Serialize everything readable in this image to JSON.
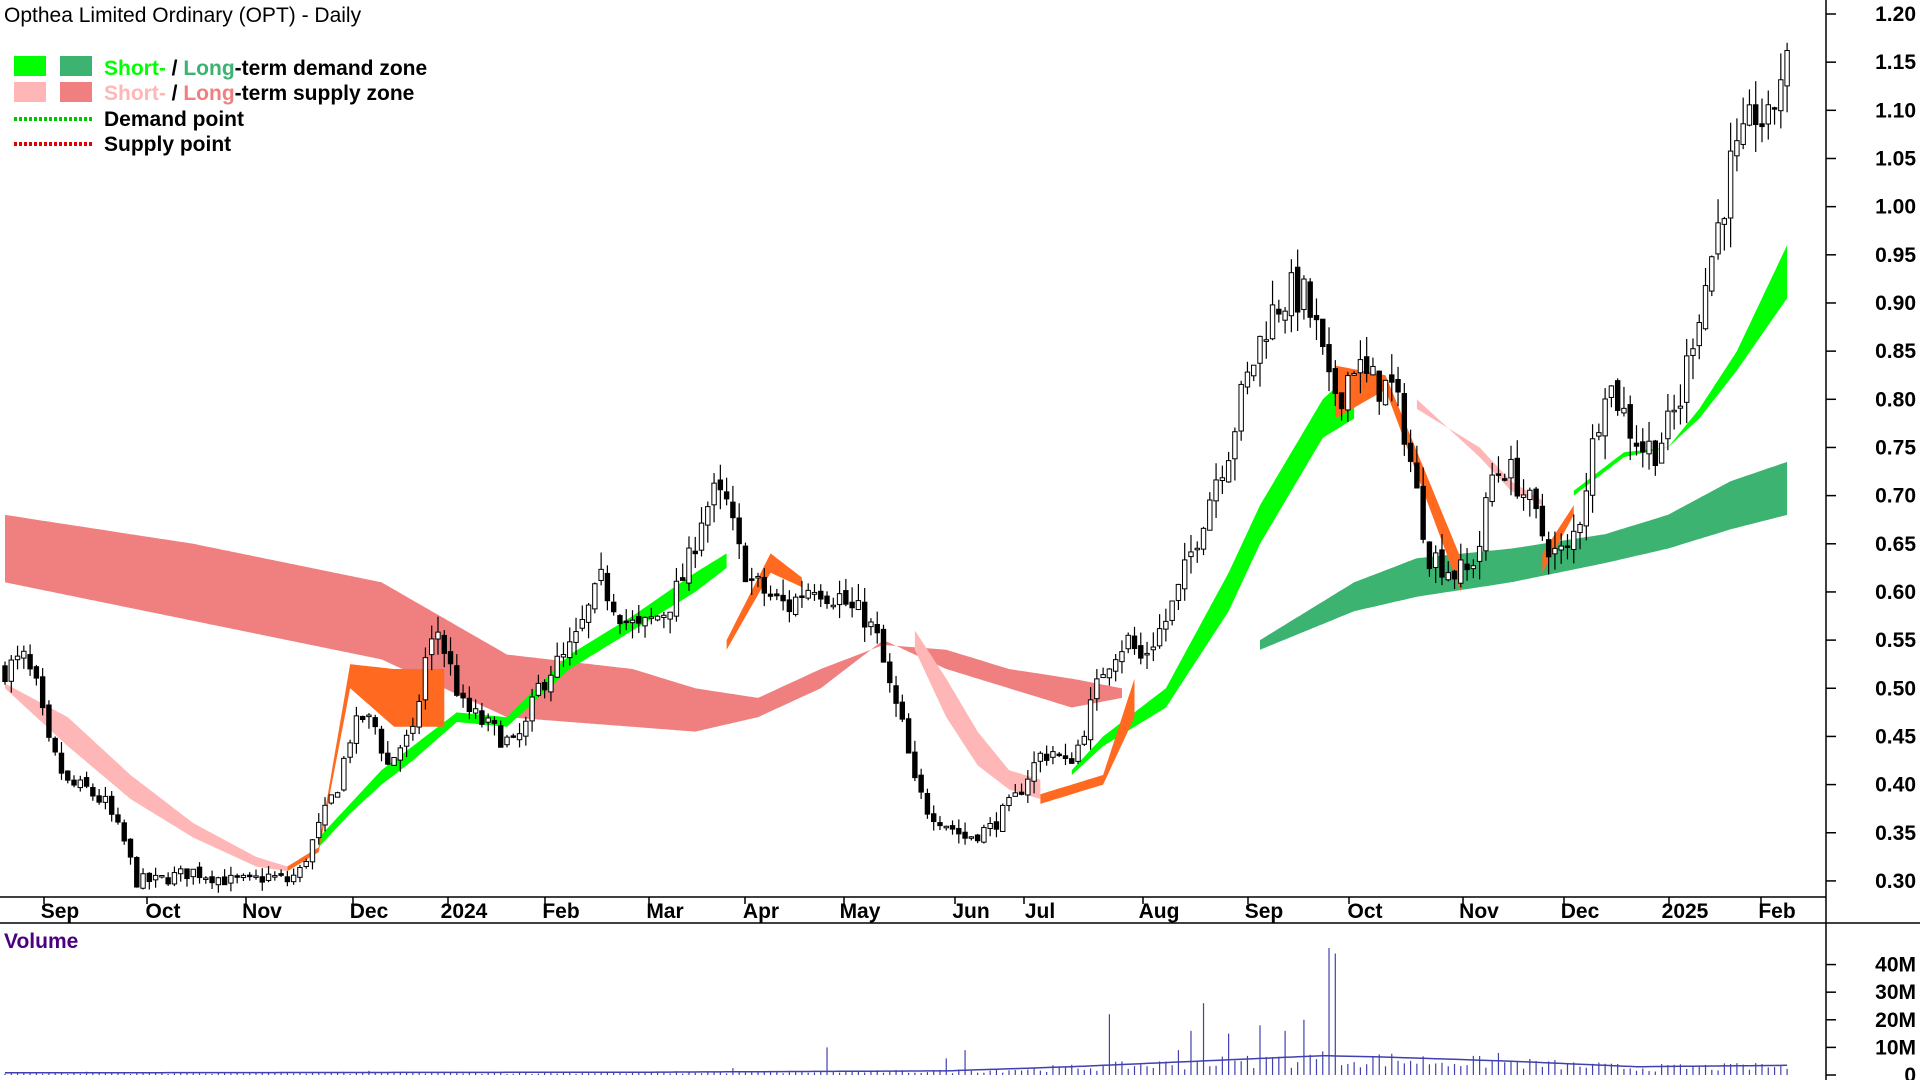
{
  "chart_data": {
    "type": "candlestick",
    "title": "Opthea Limited Ordinary (OPT) - Daily",
    "legend": {
      "placement": "top-left",
      "short_label": "Short-",
      "slash": " / ",
      "long_label": "Long",
      "demand_zone_suffix": "-term demand zone",
      "supply_zone_suffix": "-term supply zone",
      "demand_point": "Demand point",
      "supply_point": "Supply point"
    },
    "colors": {
      "short_demand": "#00ff00",
      "long_demand": "#3cb371",
      "short_supply": "#ffb6b6",
      "long_supply": "#f08080",
      "overlap": "#ff6a20",
      "demand_point": "#00c800",
      "supply_point": "#e00000",
      "volume": "#4040b0",
      "volume_text": "#4b0082"
    },
    "y_axis": {
      "min": 0.275,
      "max": 1.2,
      "ticks": [
        "1.20",
        "1.15",
        "1.10",
        "1.05",
        "1.00",
        "0.95",
        "0.90",
        "0.85",
        "0.80",
        "0.75",
        "0.70",
        "0.65",
        "0.60",
        "0.55",
        "0.50",
        "0.45",
        "0.40",
        "0.35",
        "0.30"
      ]
    },
    "x_axis": {
      "labels": [
        "Sep",
        "Oct",
        "Nov",
        "Dec",
        "2024",
        "Feb",
        "Mar",
        "Apr",
        "May",
        "Jun",
        "Jul",
        "Aug",
        "Sep",
        "Oct",
        "Nov",
        "Dec",
        "2025",
        "Feb"
      ]
    },
    "price_path": [
      [
        0,
        0.52
      ],
      [
        3,
        0.53
      ],
      [
        5,
        0.5
      ],
      [
        7,
        0.44
      ],
      [
        10,
        0.4
      ],
      [
        13,
        0.395
      ],
      [
        16,
        0.38
      ],
      [
        19,
        0.34
      ],
      [
        21,
        0.3
      ],
      [
        24,
        0.3
      ],
      [
        27,
        0.305
      ],
      [
        30,
        0.31
      ],
      [
        33,
        0.305
      ],
      [
        36,
        0.3
      ],
      [
        39,
        0.3
      ],
      [
        42,
        0.305
      ],
      [
        45,
        0.3
      ],
      [
        47,
        0.31
      ],
      [
        49,
        0.34
      ],
      [
        51,
        0.37
      ],
      [
        53,
        0.4
      ],
      [
        55,
        0.45
      ],
      [
        57,
        0.47
      ],
      [
        59,
        0.46
      ],
      [
        61,
        0.42
      ],
      [
        63,
        0.44
      ],
      [
        65,
        0.45
      ],
      [
        67,
        0.53
      ],
      [
        69,
        0.56
      ],
      [
        71,
        0.52
      ],
      [
        73,
        0.48
      ],
      [
        75,
        0.47
      ],
      [
        77,
        0.46
      ],
      [
        79,
        0.45
      ],
      [
        81,
        0.44
      ],
      [
        83,
        0.46
      ],
      [
        85,
        0.5
      ],
      [
        87,
        0.52
      ],
      [
        89,
        0.53
      ],
      [
        91,
        0.55
      ],
      [
        93,
        0.58
      ],
      [
        95,
        0.61
      ],
      [
        97,
        0.59
      ],
      [
        99,
        0.57
      ],
      [
        101,
        0.56
      ],
      [
        103,
        0.57
      ],
      [
        105,
        0.58
      ],
      [
        107,
        0.6
      ],
      [
        109,
        0.63
      ],
      [
        111,
        0.68
      ],
      [
        113,
        0.7
      ],
      [
        115,
        0.69
      ],
      [
        117,
        0.64
      ],
      [
        119,
        0.61
      ],
      [
        121,
        0.6
      ],
      [
        123,
        0.59
      ],
      [
        125,
        0.585
      ],
      [
        127,
        0.6
      ],
      [
        129,
        0.61
      ],
      [
        131,
        0.6
      ],
      [
        133,
        0.595
      ],
      [
        135,
        0.58
      ],
      [
        137,
        0.575
      ],
      [
        139,
        0.55
      ],
      [
        141,
        0.5
      ],
      [
        143,
        0.46
      ],
      [
        145,
        0.4
      ],
      [
        147,
        0.375
      ],
      [
        149,
        0.365
      ],
      [
        151,
        0.355
      ],
      [
        153,
        0.345
      ],
      [
        155,
        0.35
      ],
      [
        157,
        0.355
      ],
      [
        159,
        0.37
      ],
      [
        161,
        0.385
      ],
      [
        163,
        0.41
      ],
      [
        165,
        0.43
      ],
      [
        167,
        0.435
      ],
      [
        169,
        0.42
      ],
      [
        171,
        0.44
      ],
      [
        173,
        0.48
      ],
      [
        175,
        0.52
      ],
      [
        177,
        0.54
      ],
      [
        179,
        0.55
      ],
      [
        181,
        0.53
      ],
      [
        183,
        0.55
      ],
      [
        185,
        0.57
      ],
      [
        187,
        0.6
      ],
      [
        189,
        0.64
      ],
      [
        191,
        0.68
      ],
      [
        193,
        0.72
      ],
      [
        195,
        0.75
      ],
      [
        197,
        0.8
      ],
      [
        199,
        0.84
      ],
      [
        201,
        0.88
      ],
      [
        203,
        0.9
      ],
      [
        205,
        0.91
      ],
      [
        207,
        0.905
      ],
      [
        209,
        0.87
      ],
      [
        211,
        0.81
      ],
      [
        213,
        0.81
      ],
      [
        215,
        0.84
      ],
      [
        217,
        0.82
      ],
      [
        219,
        0.815
      ],
      [
        221,
        0.81
      ],
      [
        223,
        0.77
      ],
      [
        225,
        0.7
      ],
      [
        227,
        0.64
      ],
      [
        229,
        0.63
      ],
      [
        231,
        0.62
      ],
      [
        233,
        0.62
      ],
      [
        235,
        0.65
      ],
      [
        237,
        0.72
      ],
      [
        239,
        0.73
      ],
      [
        241,
        0.715
      ],
      [
        243,
        0.69
      ],
      [
        245,
        0.66
      ],
      [
        247,
        0.64
      ],
      [
        249,
        0.64
      ],
      [
        251,
        0.68
      ],
      [
        253,
        0.75
      ],
      [
        255,
        0.82
      ],
      [
        257,
        0.8
      ],
      [
        259,
        0.77
      ],
      [
        261,
        0.75
      ],
      [
        263,
        0.75
      ],
      [
        265,
        0.77
      ],
      [
        267,
        0.8
      ],
      [
        269,
        0.87
      ],
      [
        271,
        0.92
      ],
      [
        273,
        0.98
      ],
      [
        275,
        1.04
      ],
      [
        277,
        1.06
      ],
      [
        279,
        1.1
      ],
      [
        281,
        1.08
      ],
      [
        283,
        1.14
      ]
    ],
    "zones": {
      "long_supply": [
        [
          0,
          0.61,
          0.68
        ],
        [
          30,
          0.57,
          0.65
        ],
        [
          60,
          0.53,
          0.61
        ],
        [
          80,
          0.47,
          0.535
        ],
        [
          100,
          0.46,
          0.52
        ],
        [
          110,
          0.455,
          0.5
        ],
        [
          120,
          0.47,
          0.49
        ],
        [
          130,
          0.5,
          0.52
        ],
        [
          140,
          0.55,
          0.545
        ],
        [
          150,
          0.52,
          0.54
        ],
        [
          160,
          0.5,
          0.52
        ],
        [
          170,
          0.48,
          0.51
        ],
        [
          178,
          0.49,
          0.5
        ]
      ],
      "long_demand": [
        [
          200,
          0.54,
          0.55
        ],
        [
          215,
          0.58,
          0.61
        ],
        [
          225,
          0.595,
          0.635
        ],
        [
          240,
          0.61,
          0.645
        ],
        [
          255,
          0.63,
          0.66
        ],
        [
          265,
          0.645,
          0.68
        ],
        [
          275,
          0.665,
          0.715
        ],
        [
          284,
          0.68,
          0.735
        ]
      ],
      "short_supply": [
        [
          0,
          0.5,
          0.505
        ],
        [
          10,
          0.44,
          0.47
        ],
        [
          20,
          0.385,
          0.41
        ],
        [
          30,
          0.345,
          0.36
        ],
        [
          40,
          0.315,
          0.325
        ],
        [
          45,
          0.31,
          0.315
        ],
        [
          145,
          0.54,
          0.56
        ],
        [
          150,
          0.47,
          0.51
        ],
        [
          155,
          0.42,
          0.455
        ],
        [
          160,
          0.395,
          0.415
        ],
        [
          165,
          0.385,
          0.405
        ],
        [
          225,
          0.79,
          0.8
        ],
        [
          230,
          0.77,
          0.77
        ],
        [
          235,
          0.74,
          0.75
        ],
        [
          240,
          0.705,
          0.715
        ],
        [
          245,
          0.69,
          0.695
        ]
      ],
      "short_demand": [
        [
          50,
          0.335,
          0.345
        ],
        [
          55,
          0.37,
          0.38
        ],
        [
          60,
          0.4,
          0.415
        ],
        [
          65,
          0.425,
          0.44
        ],
        [
          72,
          0.465,
          0.475
        ],
        [
          80,
          0.46,
          0.47
        ],
        [
          90,
          0.52,
          0.535
        ],
        [
          100,
          0.56,
          0.575
        ],
        [
          110,
          0.6,
          0.62
        ],
        [
          115,
          0.625,
          0.64
        ],
        [
          170,
          0.41,
          0.415
        ],
        [
          175,
          0.44,
          0.45
        ],
        [
          185,
          0.48,
          0.5
        ],
        [
          195,
          0.58,
          0.62
        ],
        [
          200,
          0.65,
          0.69
        ],
        [
          210,
          0.76,
          0.8
        ],
        [
          215,
          0.78,
          0.83
        ],
        [
          250,
          0.7,
          0.705
        ],
        [
          258,
          0.74,
          0.745
        ],
        [
          265,
          0.75,
          0.75
        ],
        [
          270,
          0.78,
          0.79
        ],
        [
          276,
          0.83,
          0.85
        ],
        [
          284,
          0.905,
          0.96
        ]
      ],
      "overlap": [
        [
          45,
          0.31,
          0.315
        ],
        [
          50,
          0.33,
          0.335
        ],
        [
          55,
          0.5,
          0.525
        ],
        [
          62,
          0.46,
          0.52
        ],
        [
          70,
          0.46,
          0.52
        ],
        [
          85,
          0.47,
          0.5
        ],
        [
          100,
          0.52,
          0.54
        ],
        [
          115,
          0.54,
          0.55
        ],
        [
          122,
          0.62,
          0.64
        ],
        [
          127,
          0.605,
          0.615
        ],
        [
          165,
          0.38,
          0.39
        ],
        [
          175,
          0.4,
          0.41
        ],
        [
          180,
          0.47,
          0.51
        ],
        [
          195,
          0.505,
          0.525
        ],
        [
          212,
          0.78,
          0.835
        ],
        [
          220,
          0.81,
          0.825
        ],
        [
          232,
          0.6,
          0.635
        ],
        [
          245,
          0.62,
          0.64
        ],
        [
          250,
          0.68,
          0.69
        ]
      ]
    },
    "volume": {
      "title": "Volume",
      "ticks": [
        "40M",
        "30M",
        "20M",
        "10M",
        "0"
      ],
      "max": 46,
      "spikes": [
        [
          13,
          1.2
        ],
        [
          58,
          1.5
        ],
        [
          116,
          2.5
        ],
        [
          131,
          10
        ],
        [
          150,
          6
        ],
        [
          153,
          9
        ],
        [
          176,
          22
        ],
        [
          187,
          9
        ],
        [
          189,
          16
        ],
        [
          191,
          26
        ],
        [
          195,
          15
        ],
        [
          197,
          5
        ],
        [
          200,
          18
        ],
        [
          204,
          16
        ],
        [
          207,
          20
        ],
        [
          211,
          46
        ],
        [
          212,
          44
        ],
        [
          214,
          4
        ],
        [
          231,
          4
        ],
        [
          238,
          8
        ],
        [
          275,
          4
        ],
        [
          280,
          4
        ]
      ],
      "avg": [
        [
          0,
          0.8
        ],
        [
          100,
          1
        ],
        [
          150,
          1.5
        ],
        [
          170,
          3
        ],
        [
          190,
          5
        ],
        [
          210,
          7
        ],
        [
          220,
          6.5
        ],
        [
          240,
          5
        ],
        [
          260,
          3
        ],
        [
          284,
          3.5
        ]
      ]
    }
  }
}
